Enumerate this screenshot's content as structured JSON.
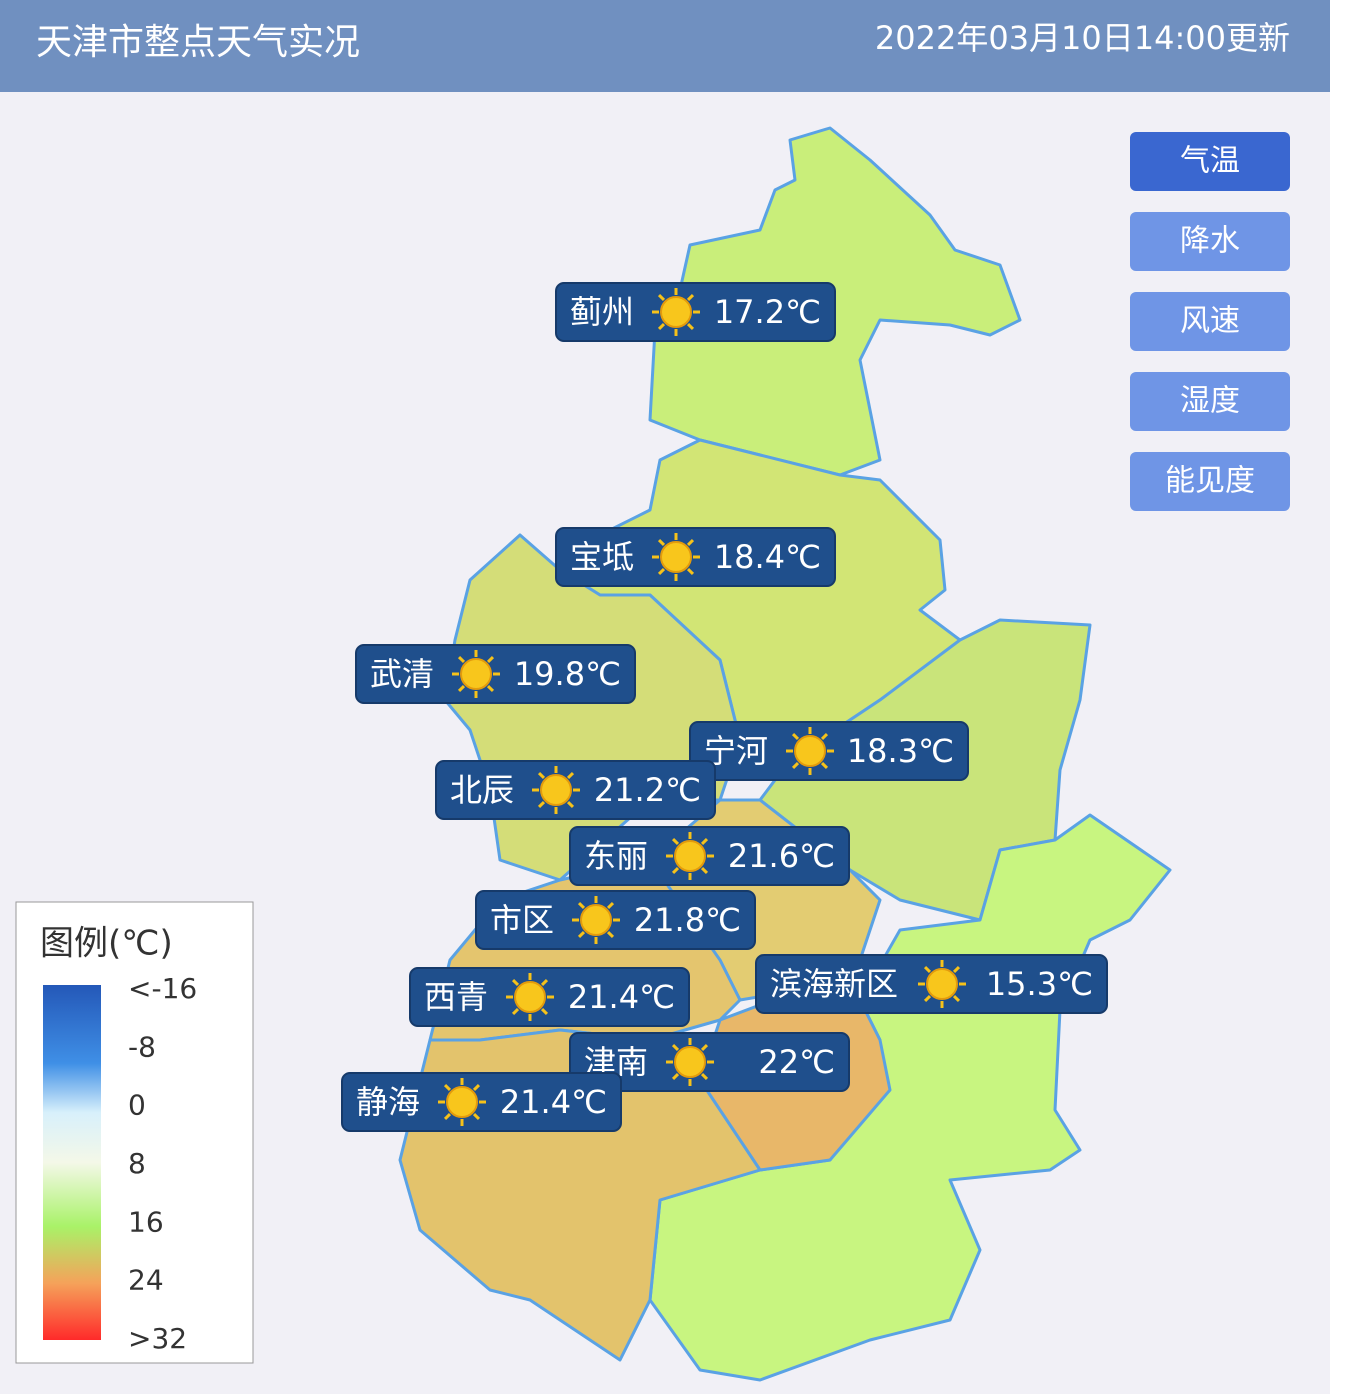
{
  "header": {
    "title": "天津市整点天气实况",
    "updated": "2022年03月10日14:00更新"
  },
  "buttons": [
    "气温",
    "降水",
    "风速",
    "湿度",
    "能见度"
  ],
  "stations": [
    {
      "name": "蓟州",
      "temperature": "17.2℃"
    },
    {
      "name": "宝坻",
      "temperature": "18.4℃"
    },
    {
      "name": "武清",
      "temperature": "19.8℃"
    },
    {
      "name": "宁河",
      "temperature": "18.3℃"
    },
    {
      "name": "北辰",
      "temperature": "21.2℃"
    },
    {
      "name": "东丽",
      "temperature": "21.6℃"
    },
    {
      "name": "市区",
      "temperature": "21.8℃"
    },
    {
      "name": "西青",
      "temperature": "21.4℃"
    },
    {
      "name": "滨海新区",
      "temperature": "15.3℃"
    },
    {
      "name": "津南",
      "temperature": "22℃"
    },
    {
      "name": "静海",
      "temperature": "21.4℃"
    }
  ],
  "legend": {
    "title": "图例(℃)",
    "labels": [
      "<-16",
      "-8",
      "0",
      "8",
      "16",
      "24",
      ">32"
    ]
  }
}
